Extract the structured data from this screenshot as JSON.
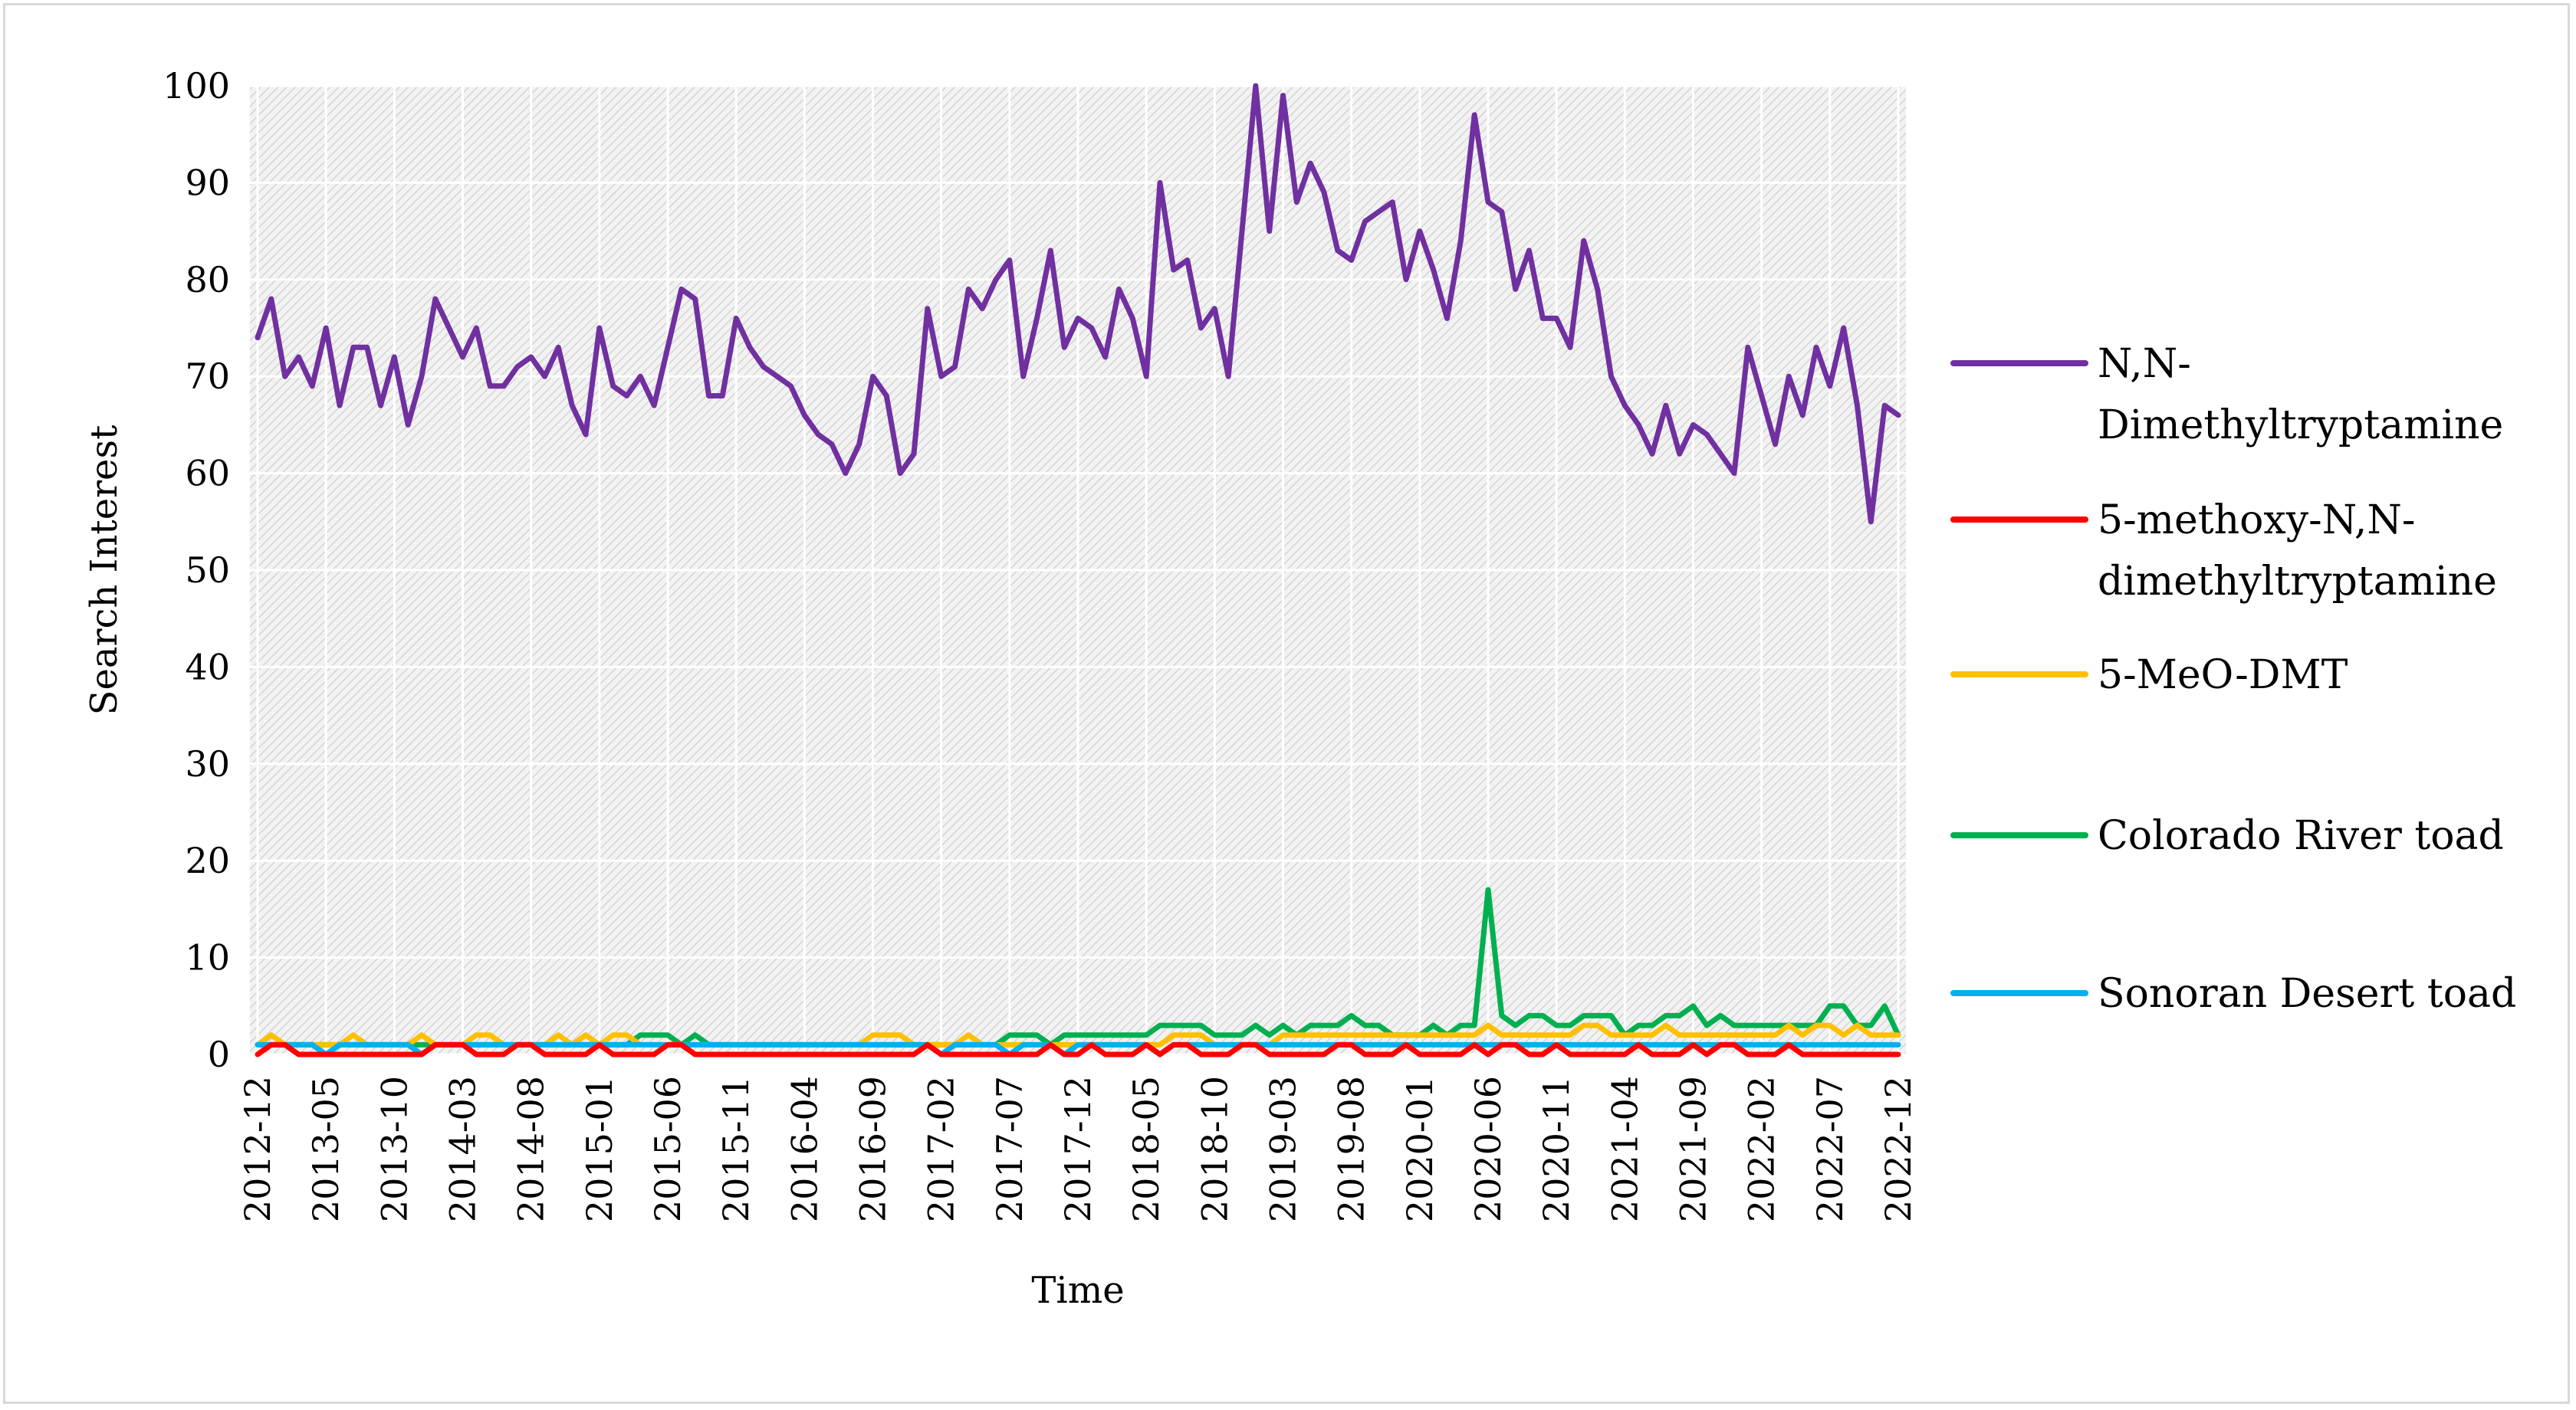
{
  "chart_data": {
    "type": "line",
    "title": "",
    "xlabel": "Time",
    "ylabel": "Search Interest",
    "ylim": [
      0,
      100
    ],
    "yticks": [
      0,
      10,
      20,
      30,
      40,
      50,
      60,
      70,
      80,
      90,
      100
    ],
    "x_start": "2012-12",
    "x_end": "2022-12",
    "x_tick_labels": [
      "2012-12",
      "2013-05",
      "2013-10",
      "2014-03",
      "2014-08",
      "2015-01",
      "2015-06",
      "2015-11",
      "2016-04",
      "2016-09",
      "2017-02",
      "2017-07",
      "2017-12",
      "2018-05",
      "2018-10",
      "2019-03",
      "2019-08",
      "2020-01",
      "2020-06",
      "2020-11",
      "2021-04",
      "2021-09",
      "2022-02",
      "2022-07",
      "2022-12"
    ],
    "grid": true,
    "legend_position": "right",
    "series": [
      {
        "name": "N,N-Dimethyltryptamine",
        "legend_lines": [
          "N,N-",
          "Dimethyltryptamine"
        ],
        "color": "#7030a0",
        "values": [
          74,
          78,
          70,
          72,
          69,
          75,
          67,
          73,
          73,
          67,
          72,
          65,
          70,
          78,
          75,
          72,
          75,
          69,
          69,
          71,
          72,
          70,
          73,
          67,
          64,
          75,
          69,
          68,
          70,
          67,
          73,
          79,
          78,
          68,
          68,
          76,
          73,
          71,
          70,
          69,
          66,
          64,
          63,
          60,
          63,
          70,
          68,
          60,
          62,
          77,
          70,
          71,
          79,
          77,
          80,
          82,
          70,
          76,
          83,
          73,
          76,
          75,
          72,
          79,
          76,
          70,
          90,
          81,
          82,
          75,
          77,
          70,
          85,
          100,
          85,
          99,
          88,
          92,
          89,
          83,
          82,
          86,
          87,
          88,
          80,
          85,
          81,
          76,
          84,
          97,
          88,
          87,
          79,
          83,
          76,
          76,
          73,
          84,
          79,
          70,
          67,
          65,
          62,
          67,
          62,
          65,
          64,
          62,
          60,
          73,
          68,
          63,
          70,
          66,
          73,
          69,
          75,
          67,
          55,
          67,
          66
        ]
      },
      {
        "name": "5-methoxy-N,N-dimethyltryptamine",
        "legend_lines": [
          "5-methoxy-N,N-",
          "dimethyltryptamine"
        ],
        "color": "#ff0000",
        "values": [
          0,
          1,
          1,
          0,
          0,
          0,
          0,
          0,
          0,
          0,
          0,
          0,
          0,
          1,
          1,
          1,
          0,
          0,
          0,
          1,
          1,
          0,
          0,
          0,
          0,
          1,
          0,
          0,
          0,
          0,
          1,
          1,
          0,
          0,
          0,
          0,
          0,
          0,
          0,
          0,
          0,
          0,
          0,
          0,
          0,
          0,
          0,
          0,
          0,
          1,
          0,
          0,
          0,
          0,
          0,
          0,
          0,
          0,
          1,
          0,
          0,
          1,
          0,
          0,
          0,
          1,
          0,
          1,
          1,
          0,
          0,
          0,
          1,
          1,
          0,
          0,
          0,
          0,
          0,
          1,
          1,
          0,
          0,
          0,
          1,
          0,
          0,
          0,
          0,
          1,
          0,
          1,
          1,
          0,
          0,
          1,
          0,
          0,
          0,
          0,
          0,
          1,
          0,
          0,
          0,
          1,
          0,
          1,
          1,
          0,
          0,
          0,
          1,
          0,
          0,
          0,
          0,
          0,
          0,
          0,
          0
        ]
      },
      {
        "name": "5-MeO-DMT",
        "legend_lines": [
          "5-MeO-DMT"
        ],
        "color": "#ffc000",
        "values": [
          1,
          2,
          1,
          1,
          1,
          1,
          1,
          2,
          1,
          1,
          1,
          1,
          2,
          1,
          1,
          1,
          2,
          2,
          1,
          1,
          1,
          1,
          2,
          1,
          2,
          1,
          2,
          2,
          1,
          1,
          1,
          1,
          1,
          1,
          1,
          1,
          1,
          1,
          1,
          1,
          1,
          1,
          1,
          1,
          1,
          2,
          2,
          2,
          1,
          1,
          1,
          1,
          2,
          1,
          1,
          1,
          1,
          1,
          1,
          1,
          1,
          1,
          1,
          1,
          1,
          1,
          1,
          2,
          2,
          2,
          1,
          1,
          1,
          1,
          1,
          2,
          2,
          2,
          2,
          2,
          2,
          2,
          2,
          2,
          2,
          2,
          2,
          2,
          2,
          2,
          3,
          2,
          2,
          2,
          2,
          2,
          2,
          3,
          3,
          2,
          2,
          2,
          2,
          3,
          2,
          2,
          2,
          2,
          2,
          2,
          2,
          2,
          3,
          2,
          3,
          3,
          2,
          3,
          2,
          2,
          2
        ]
      },
      {
        "name": "Colorado River toad",
        "legend_lines": [
          "Colorado River toad"
        ],
        "color": "#00b050",
        "values": [
          1,
          1,
          1,
          1,
          1,
          1,
          1,
          1,
          1,
          1,
          1,
          1,
          1,
          1,
          1,
          1,
          1,
          1,
          1,
          1,
          1,
          1,
          1,
          1,
          1,
          1,
          1,
          1,
          2,
          2,
          2,
          1,
          2,
          1,
          1,
          1,
          1,
          1,
          1,
          1,
          1,
          1,
          1,
          1,
          1,
          1,
          1,
          1,
          1,
          1,
          1,
          1,
          1,
          1,
          1,
          2,
          2,
          2,
          1,
          2,
          2,
          2,
          2,
          2,
          2,
          2,
          3,
          3,
          3,
          3,
          2,
          2,
          2,
          3,
          2,
          3,
          2,
          3,
          3,
          3,
          4,
          3,
          3,
          2,
          2,
          2,
          3,
          2,
          3,
          3,
          17,
          4,
          3,
          4,
          4,
          3,
          3,
          4,
          4,
          4,
          2,
          3,
          3,
          4,
          4,
          5,
          3,
          4,
          3,
          3,
          3,
          3,
          3,
          3,
          3,
          5,
          5,
          3,
          3,
          5,
          2
        ]
      },
      {
        "name": "Sonoran Desert toad",
        "legend_lines": [
          "Sonoran Desert toad"
        ],
        "color": "#00b0f0",
        "values": [
          1,
          1,
          1,
          1,
          1,
          0,
          1,
          1,
          1,
          1,
          1,
          1,
          0,
          1,
          1,
          1,
          1,
          1,
          1,
          1,
          1,
          1,
          1,
          1,
          1,
          1,
          1,
          1,
          1,
          1,
          1,
          1,
          1,
          1,
          1,
          1,
          1,
          1,
          1,
          1,
          1,
          1,
          1,
          1,
          1,
          1,
          1,
          1,
          1,
          1,
          0,
          1,
          1,
          1,
          1,
          0,
          1,
          1,
          1,
          0,
          1,
          1,
          1,
          1,
          1,
          1,
          0,
          1,
          1,
          1,
          1,
          1,
          1,
          1,
          1,
          1,
          1,
          1,
          1,
          1,
          1,
          1,
          1,
          1,
          1,
          1,
          1,
          1,
          1,
          1,
          1,
          1,
          1,
          1,
          1,
          1,
          1,
          1,
          1,
          1,
          1,
          1,
          1,
          1,
          1,
          1,
          1,
          1,
          1,
          1,
          1,
          1,
          1,
          1,
          1,
          1,
          1,
          1,
          1,
          1,
          1
        ]
      }
    ]
  }
}
